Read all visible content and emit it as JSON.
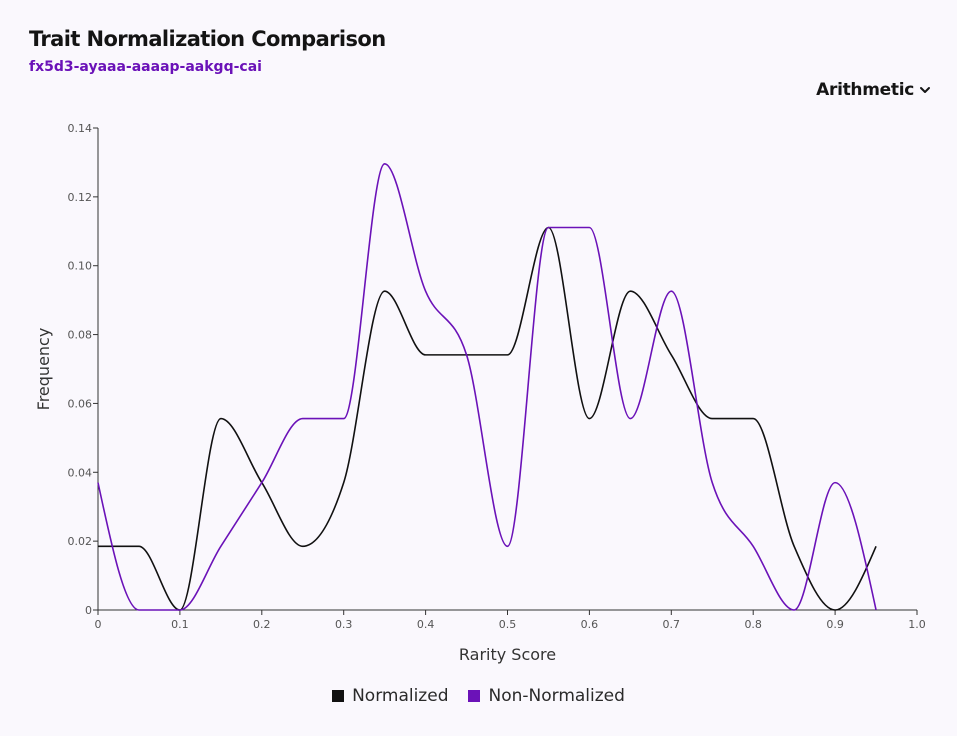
{
  "header": {
    "title": "Trait Normalization Comparison",
    "canister_id": "fx5d3-ayaaa-aaaap-aakgq-cai"
  },
  "controls": {
    "mode_select": "Arithmetic"
  },
  "chart_data": {
    "type": "line",
    "title": "Trait Normalization Comparison",
    "subtitle": "fx5d3-ayaaa-aaaap-aakgq-cai",
    "xlabel": "Rarity Score",
    "ylabel": "Frequency",
    "xlim": [
      0,
      1.0
    ],
    "ylim": [
      0,
      0.14
    ],
    "x_ticks": [
      "0",
      "0.1",
      "0.2",
      "0.3",
      "0.4",
      "0.5",
      "0.6",
      "0.7",
      "0.8",
      "0.9",
      "1.0"
    ],
    "y_ticks": [
      "0",
      "0.02",
      "0.04",
      "0.06",
      "0.08",
      "0.10",
      "0.12",
      "0.14"
    ],
    "x": [
      0,
      0.05,
      0.1,
      0.15,
      0.2,
      0.25,
      0.3,
      0.35,
      0.4,
      0.45,
      0.5,
      0.55,
      0.6,
      0.65,
      0.7,
      0.75,
      0.8,
      0.85,
      0.9,
      0.95
    ],
    "series": [
      {
        "name": "Normalized",
        "color": "#111111",
        "values": [
          0.0185,
          0.0185,
          0,
          0.0556,
          0.037,
          0.0185,
          0.037,
          0.0926,
          0.0741,
          0.0741,
          0.0741,
          0.1111,
          0.0556,
          0.0926,
          0.0741,
          0.0556,
          0.0556,
          0.0185,
          0,
          0.0185
        ]
      },
      {
        "name": "Non-Normalized",
        "color": "#6b12b8",
        "values": [
          0.037,
          0,
          0,
          0.0185,
          0.037,
          0.0556,
          0.0556,
          0.1296,
          0.0926,
          0.0741,
          0.0185,
          0.1111,
          0.1111,
          0.0556,
          0.0926,
          0.037,
          0.0185,
          0,
          0.037,
          0
        ]
      }
    ],
    "grid": false,
    "legend_position": "bottom-center"
  }
}
